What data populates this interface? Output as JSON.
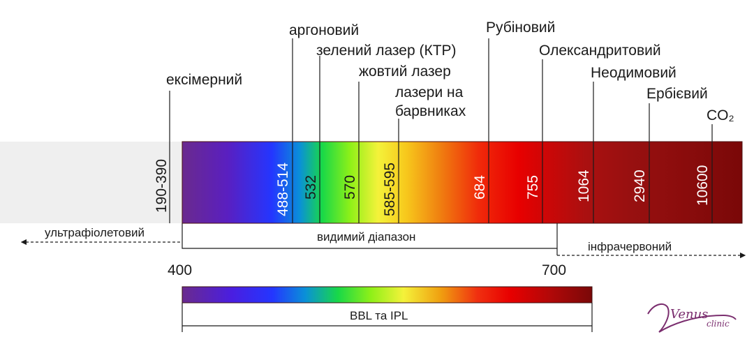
{
  "lasers": [
    {
      "name": "ексімерний",
      "wavelength": "190-390"
    },
    {
      "name": "аргоновий",
      "wavelength": "488-514"
    },
    {
      "name": "зелений лазер (КТР)",
      "wavelength": "532"
    },
    {
      "name": "жовтий лазер",
      "wavelength": "570"
    },
    {
      "name_line1": "лазери на",
      "name_line2": "барвниках",
      "wavelength": "585-595"
    },
    {
      "name": "Рубіновий",
      "wavelength": "684"
    },
    {
      "name": "Олександритовий",
      "wavelength": "755"
    },
    {
      "name": "Неодимовий",
      "wavelength": "1064"
    },
    {
      "name": "Ербієвий",
      "wavelength": "2940"
    },
    {
      "name": "CO₂",
      "wavelength": "10600"
    }
  ],
  "ranges": {
    "uv": "ультрафіолетовий",
    "visible": "видимий діапазон",
    "ir": "інфрачервоний"
  },
  "scale": {
    "start": "400",
    "end": "700"
  },
  "bbl_label": "BBL та IPL",
  "logo": {
    "main": "Venus",
    "sub": "clinic"
  }
}
